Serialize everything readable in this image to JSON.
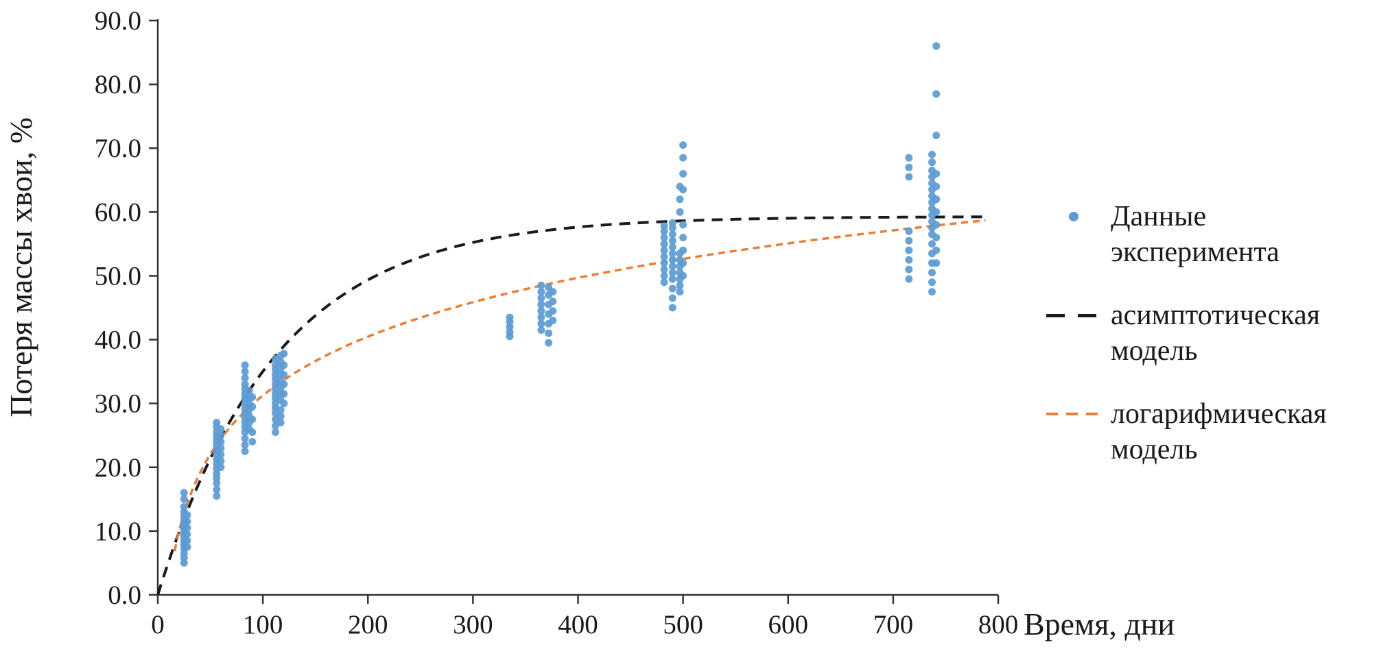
{
  "chart_data": {
    "type": "scatter",
    "xlabel": "Время, дни",
    "ylabel": "Потеря массы хвои, %",
    "xlim": [
      0,
      800
    ],
    "ylim": [
      0,
      90
    ],
    "x_ticks": [
      0,
      100,
      200,
      300,
      400,
      500,
      600,
      700,
      800
    ],
    "x_tick_labels": [
      "0",
      "100",
      "200",
      "300",
      "400",
      "500",
      "600",
      "700",
      "800"
    ],
    "y_ticks": [
      0,
      10,
      20,
      30,
      40,
      50,
      60,
      70,
      80,
      90
    ],
    "y_tick_labels": [
      "0.0",
      "10.0",
      "20.0",
      "30.0",
      "40.0",
      "50.0",
      "60.0",
      "70.0",
      "80.0",
      "90.0"
    ],
    "grid": "off",
    "legend": {
      "position": "right"
    },
    "axis_color": "#333333",
    "series": [
      {
        "name": "Данные эксперимента",
        "type": "scatter",
        "color": "#5b9bd5",
        "clusters": [
          {
            "x": 25,
            "y": [
              5.0,
              5.8,
              6.5,
              7.2,
              7.8,
              8.3,
              8.8,
              9.3,
              9.8,
              10.3,
              10.8,
              11.3,
              11.8,
              12.4,
              13.0,
              13.8,
              15.0,
              16.0
            ]
          },
          {
            "x": 28,
            "y": [
              7.5,
              8.5,
              9.5,
              10.5,
              11.5,
              12.5
            ]
          },
          {
            "x": 56,
            "y": [
              15.5,
              16.5,
              17.5,
              18.3,
              19.0,
              19.8,
              20.5,
              21.2,
              22.0,
              22.7,
              23.4,
              24.1,
              24.8,
              25.5,
              26.3,
              27.0
            ]
          },
          {
            "x": 60,
            "y": [
              20.0,
              21.0,
              22.0,
              23.0,
              24.0,
              25.0,
              26.0
            ]
          },
          {
            "x": 83,
            "y": [
              22.5,
              23.5,
              24.5,
              25.5,
              26.3,
              27.0,
              27.8,
              28.5,
              29.2,
              30.0,
              30.8,
              31.5,
              32.3,
              33.0,
              34.0,
              35.0,
              36.0
            ]
          },
          {
            "x": 87,
            "y": [
              26.0,
              27.0,
              28.0,
              29.0,
              30.0,
              31.0,
              32.0
            ]
          },
          {
            "x": 90,
            "y": [
              24.0,
              25.5,
              27.5,
              29.5,
              31.0
            ]
          },
          {
            "x": 112,
            "y": [
              25.5,
              26.5,
              27.5,
              28.5,
              29.3,
              30.0,
              30.8,
              31.5,
              32.3,
              33.0,
              33.8,
              34.5,
              35.3,
              36.0,
              37.0
            ]
          },
          {
            "x": 117,
            "y": [
              27.0,
              28.0,
              29.0,
              30.5,
              31.5,
              32.5,
              33.5,
              34.5,
              35.5,
              36.5,
              37.5
            ]
          },
          {
            "x": 120,
            "y": [
              30.0,
              31.5,
              33.0,
              34.5,
              36.0,
              37.8
            ]
          },
          {
            "x": 335,
            "y": [
              40.5,
              41.2,
              42.0,
              42.8,
              43.5
            ]
          },
          {
            "x": 365,
            "y": [
              41.5,
              42.5,
              43.5,
              44.5,
              45.5,
              46.5,
              47.5,
              48.5
            ]
          },
          {
            "x": 372,
            "y": [
              39.5,
              41.0,
              42.5,
              44.0,
              45.5,
              47.0,
              48.2
            ]
          },
          {
            "x": 376,
            "y": [
              43.0,
              44.5,
              46.0,
              47.5
            ]
          },
          {
            "x": 482,
            "y": [
              49.0,
              50.0,
              51.0,
              52.0,
              53.0,
              54.0,
              55.0,
              56.0,
              57.0,
              57.8
            ]
          },
          {
            "x": 490,
            "y": [
              45.0,
              46.5,
              48.0,
              49.5,
              50.5,
              51.5,
              52.5,
              53.5,
              54.5,
              55.5,
              56.5,
              57.5,
              58.3
            ]
          },
          {
            "x": 497,
            "y": [
              47.5,
              48.5,
              49.5,
              50.5,
              51.5,
              52.5,
              53.5,
              60.0,
              62.0,
              64.0
            ]
          },
          {
            "x": 500,
            "y": [
              50.0,
              52.0,
              54.0,
              56.0,
              58.0,
              63.5,
              66.0,
              68.5,
              70.5
            ]
          },
          {
            "x": 715,
            "y": [
              49.5,
              51.0,
              52.5,
              54.0,
              55.5,
              57.0,
              65.5,
              67.0,
              68.5
            ]
          },
          {
            "x": 737,
            "y": [
              47.5,
              49.0,
              50.5,
              52.0,
              53.5,
              55.0,
              56.5,
              57.5,
              58.5,
              59.5,
              60.5,
              61.5,
              62.5,
              63.5,
              64.5,
              65.5,
              66.5,
              67.8,
              69.0
            ]
          },
          {
            "x": 741,
            "y": [
              52.0,
              54.0,
              56.0,
              58.0,
              60.0,
              62.0,
              64.0,
              66.0,
              72.0,
              78.5,
              86.0
            ]
          }
        ]
      },
      {
        "name": "асимптотическая модель",
        "type": "line",
        "model": "asymptotic",
        "color": "#1a1a1a",
        "width": 4,
        "dash": [
          16,
          11
        ],
        "x_range": [
          0,
          788
        ],
        "params": {
          "a": 59.3,
          "k": 112
        }
      },
      {
        "name": "логарифмическая модель",
        "type": "line",
        "model": "logarithmic",
        "color": "#ed7d31",
        "width": 3.5,
        "dash": [
          10,
          7
        ],
        "x_range": [
          16,
          790
        ],
        "params": {
          "a": 13.3,
          "b": -30.0
        }
      }
    ]
  }
}
